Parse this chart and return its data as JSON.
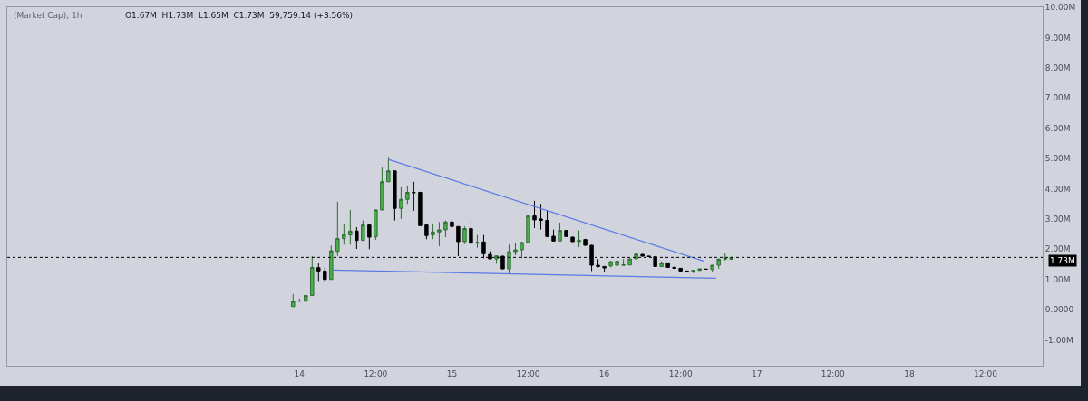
{
  "chart_data": {
    "type": "candlestick",
    "annotations": [
      "(Market Cap), 1h",
      "O1.67M  H1.73M  L1.65M  C1.73M  59,759.14 (+3.56%)"
    ],
    "x": [
      "--01-13T23:00",
      "--01-14T00:00",
      "--01-14T01:00",
      "--01-14T02:00",
      "--01-14T03:00",
      "--01-14T04:00",
      "--01-14T05:00",
      "--01-14T06:00",
      "--01-14T07:00",
      "--01-14T08:00",
      "--01-14T09:00",
      "--01-14T10:00",
      "--01-14T11:00",
      "--01-14T12:00",
      "--01-14T13:00",
      "--01-14T14:00",
      "--01-14T15:00",
      "--01-14T16:00",
      "--01-14T17:00",
      "--01-14T18:00",
      "--01-14T19:00",
      "--01-14T20:00",
      "--01-14T21:00",
      "--01-14T22:00",
      "--01-14T23:00",
      "--01-15T00:00",
      "--01-15T01:00",
      "--01-15T02:00",
      "--01-15T03:00",
      "--01-15T04:00",
      "--01-15T05:00",
      "--01-15T06:00",
      "--01-15T07:00",
      "--01-15T08:00",
      "--01-15T09:00",
      "--01-15T10:00",
      "--01-15T11:00",
      "--01-15T12:00",
      "--01-15T13:00",
      "--01-15T14:00",
      "--01-15T15:00",
      "--01-15T16:00",
      "--01-15T17:00",
      "--01-15T18:00",
      "--01-15T19:00",
      "--01-15T20:00",
      "--01-15T21:00",
      "--01-15T22:00",
      "--01-15T23:00",
      "--01-16T00:00",
      "--01-16T01:00",
      "--01-16T02:00",
      "--01-16T03:00",
      "--01-16T04:00",
      "--01-16T05:00",
      "--01-16T06:00",
      "--01-16T07:00",
      "--01-16T08:00",
      "--01-16T09:00",
      "--01-16T10:00",
      "--01-16T11:00",
      "--01-16T12:00",
      "--01-16T13:00",
      "--01-16T14:00",
      "--01-16T15:00",
      "--01-16T16:00",
      "--01-16T17:00",
      "--01-16T18:00",
      "--01-16T19:00",
      "--01-16T20:00"
    ],
    "ohlc": [
      [
        0.1,
        0.52,
        0.1,
        0.28
      ],
      [
        0.28,
        0.37,
        0.27,
        0.29
      ],
      [
        0.28,
        0.48,
        0.27,
        0.47
      ],
      [
        0.47,
        1.77,
        0.47,
        1.4
      ],
      [
        1.39,
        1.53,
        0.95,
        1.28
      ],
      [
        1.28,
        1.4,
        0.92,
        1.0
      ],
      [
        1.0,
        2.12,
        1.0,
        1.95
      ],
      [
        1.93,
        3.57,
        1.78,
        2.35
      ],
      [
        2.35,
        2.85,
        2.15,
        2.48
      ],
      [
        2.47,
        3.3,
        2.15,
        2.6
      ],
      [
        2.6,
        2.73,
        2.01,
        2.29
      ],
      [
        2.29,
        2.95,
        2.28,
        2.8
      ],
      [
        2.8,
        2.81,
        2.0,
        2.4
      ],
      [
        2.41,
        3.31,
        2.31,
        3.3
      ],
      [
        3.3,
        4.7,
        3.29,
        4.23
      ],
      [
        4.23,
        5.05,
        4.22,
        4.59
      ],
      [
        4.59,
        4.6,
        2.95,
        3.35
      ],
      [
        3.35,
        4.05,
        3.0,
        3.65
      ],
      [
        3.65,
        4.1,
        3.5,
        3.88
      ],
      [
        3.88,
        4.23,
        3.27,
        3.87
      ],
      [
        3.88,
        3.9,
        2.77,
        2.78
      ],
      [
        2.8,
        2.81,
        2.33,
        2.45
      ],
      [
        2.47,
        2.85,
        2.33,
        2.57
      ],
      [
        2.57,
        2.9,
        2.1,
        2.64
      ],
      [
        2.64,
        2.95,
        2.4,
        2.9
      ],
      [
        2.9,
        2.95,
        2.7,
        2.75
      ],
      [
        2.75,
        2.76,
        1.77,
        2.25
      ],
      [
        2.25,
        2.75,
        2.17,
        2.68
      ],
      [
        2.68,
        3.0,
        2.19,
        2.2
      ],
      [
        2.2,
        2.47,
        2.05,
        2.22
      ],
      [
        2.24,
        2.47,
        1.7,
        1.85
      ],
      [
        1.83,
        1.93,
        1.67,
        1.68
      ],
      [
        1.68,
        1.8,
        1.52,
        1.78
      ],
      [
        1.77,
        1.78,
        1.34,
        1.35
      ],
      [
        1.35,
        2.15,
        1.2,
        1.92
      ],
      [
        1.92,
        2.2,
        1.8,
        1.98
      ],
      [
        1.98,
        2.25,
        1.7,
        2.22
      ],
      [
        2.22,
        3.11,
        2.2,
        3.1
      ],
      [
        3.1,
        3.6,
        2.7,
        2.97
      ],
      [
        3.0,
        3.5,
        2.65,
        2.95
      ],
      [
        2.95,
        3.27,
        2.4,
        2.42
      ],
      [
        2.43,
        2.65,
        2.26,
        2.27
      ],
      [
        2.27,
        2.88,
        2.26,
        2.62
      ],
      [
        2.62,
        2.63,
        2.41,
        2.42
      ],
      [
        2.4,
        2.41,
        2.24,
        2.25
      ],
      [
        2.25,
        2.62,
        2.07,
        2.3
      ],
      [
        2.32,
        2.33,
        2.12,
        2.13
      ],
      [
        2.13,
        2.14,
        1.28,
        1.47
      ],
      [
        1.47,
        1.67,
        1.4,
        1.43
      ],
      [
        1.43,
        1.44,
        1.25,
        1.38
      ],
      [
        1.45,
        1.6,
        1.4,
        1.59
      ],
      [
        1.47,
        1.62,
        1.45,
        1.6
      ],
      [
        1.47,
        1.67,
        1.46,
        1.48
      ],
      [
        1.48,
        1.69,
        1.47,
        1.68
      ],
      [
        1.68,
        1.87,
        1.67,
        1.84
      ],
      [
        1.83,
        1.84,
        1.76,
        1.77
      ],
      [
        1.77,
        1.77,
        1.75,
        1.76
      ],
      [
        1.75,
        1.76,
        1.42,
        1.43
      ],
      [
        1.43,
        1.6,
        1.42,
        1.55
      ],
      [
        1.55,
        1.56,
        1.39,
        1.4
      ],
      [
        1.4,
        1.42,
        1.36,
        1.37
      ],
      [
        1.37,
        1.38,
        1.27,
        1.28
      ],
      [
        1.28,
        1.29,
        1.25,
        1.26
      ],
      [
        1.26,
        1.31,
        1.21,
        1.3
      ],
      [
        1.3,
        1.36,
        1.29,
        1.35
      ],
      [
        1.34,
        1.35,
        1.33,
        1.34
      ],
      [
        1.33,
        1.48,
        1.23,
        1.47
      ],
      [
        1.47,
        1.7,
        1.35,
        1.67
      ],
      [
        1.67,
        1.87,
        1.63,
        1.7
      ],
      [
        1.67,
        1.73,
        1.65,
        1.73
      ]
    ],
    "series": [
      {
        "type": "line",
        "x": [
          "--01-14T14:00",
          "--01-16T15:36"
        ],
        "values": [
          4.97,
          1.61
        ],
        "color": "#5b78e6"
      },
      {
        "type": "line",
        "x": [
          "--01-14T05:18",
          "--01-16T17:36"
        ],
        "values": [
          1.31,
          1.04
        ],
        "color": "#5b78e6"
      }
    ],
    "xlim": [
      "--01-12T02:00",
      "--01-18T21:00"
    ],
    "xticks": [
      {
        "value": "--01-14T00:00",
        "label": "14"
      },
      {
        "value": "--01-14T12:00",
        "label": "12:00"
      },
      {
        "value": "--01-15T00:00",
        "label": "15"
      },
      {
        "value": "--01-15T12:00",
        "label": "12:00"
      },
      {
        "value": "--01-16T00:00",
        "label": "16"
      },
      {
        "value": "--01-16T12:00",
        "label": "12:00"
      },
      {
        "value": "--01-17T00:00",
        "label": "17"
      },
      {
        "value": "--01-17T12:00",
        "label": "12:00"
      },
      {
        "value": "--01-18T00:00",
        "label": "18"
      },
      {
        "value": "--01-18T12:00",
        "label": "12:00"
      }
    ],
    "ylim": [
      -1.85,
      10.0
    ],
    "yticks": [
      {
        "value": -1,
        "label": "-1.00M"
      },
      {
        "value": 0,
        "label": "0.0000"
      },
      {
        "value": 1,
        "label": "1.00M"
      },
      {
        "value": 2,
        "label": "2.00M"
      },
      {
        "value": 3,
        "label": "3.00M"
      },
      {
        "value": 4,
        "label": "4.00M"
      },
      {
        "value": 5,
        "label": "5.00M"
      },
      {
        "value": 6,
        "label": "6.00M"
      },
      {
        "value": 7,
        "label": "7.00M"
      },
      {
        "value": 8,
        "label": "8.00M"
      },
      {
        "value": 9,
        "label": "9.00M"
      },
      {
        "value": 10,
        "label": "10.00M"
      }
    ],
    "ref_lines": [
      {
        "axis": "y",
        "value": 1.73,
        "label": "1.73M",
        "color": "#000000",
        "line_style": "dotted"
      }
    ],
    "grid": false
  }
}
